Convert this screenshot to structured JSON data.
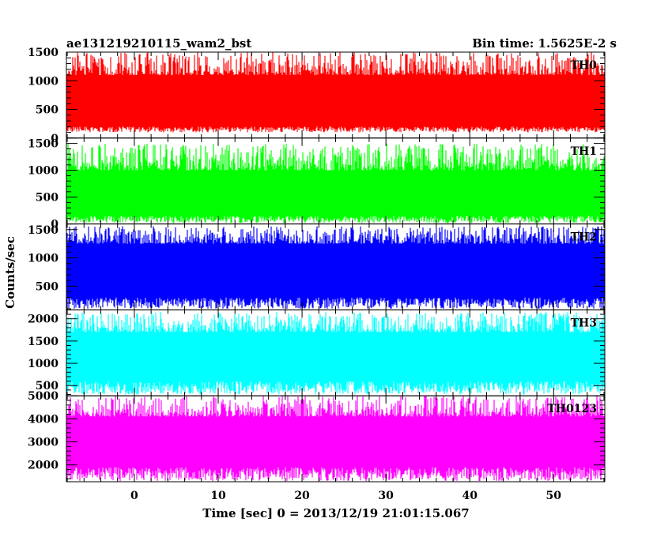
{
  "header": {
    "title": "ae131219210115_wam2_bst",
    "bin_time": "Bin time: 1.5625E-2 s"
  },
  "axes": {
    "ylabel": "Counts/sec",
    "xlabel": "Time [sec] 0 = 2013/12/19 21:01:15.067"
  },
  "chart_data": {
    "type": "line",
    "title": "ae131219210115_wam2_bst",
    "xlabel": "Time [sec] 0 = 2013/12/19 21:01:15.067",
    "ylabel": "Counts/sec",
    "xlim": [
      -8.1,
      56.1
    ],
    "x_ticks": [
      0,
      10,
      20,
      30,
      40,
      50
    ],
    "bin_time_sec": 0.015625,
    "data_x_range": [
      -8.0,
      56.0
    ],
    "panels": [
      {
        "name": "TH0",
        "color": "#ff0000",
        "ylim": [
          0,
          1500
        ],
        "y_ticks": [
          0,
          500,
          1000,
          1500
        ],
        "y_min": 100,
        "y_max": 1500,
        "y_typical_low": 200,
        "y_typical_high": 1100
      },
      {
        "name": "TH1",
        "color": "#00ff00",
        "ylim": [
          0,
          1600
        ],
        "y_ticks": [
          0,
          500,
          1000,
          1500
        ],
        "y_min": 20,
        "y_max": 1500,
        "y_typical_low": 150,
        "y_typical_high": 1000
      },
      {
        "name": "TH2",
        "color": "#0000ff",
        "ylim": [
          80,
          1600
        ],
        "y_ticks": [
          500,
          1000,
          1500
        ],
        "y_min": 100,
        "y_max": 1560,
        "y_typical_low": 300,
        "y_typical_high": 1250
      },
      {
        "name": "TH3",
        "color": "#00ffff",
        "ylim": [
          270,
          2200
        ],
        "y_ticks": [
          500,
          1000,
          1500,
          2000
        ],
        "y_min": 300,
        "y_max": 2150,
        "y_typical_low": 600,
        "y_typical_high": 1700
      },
      {
        "name": "TH0123",
        "color": "#ff00ff",
        "ylim": [
          1270,
          5000
        ],
        "y_ticks": [
          2000,
          3000,
          4000,
          5000
        ],
        "y_min": 1300,
        "y_max": 5000,
        "y_typical_low": 1900,
        "y_typical_high": 4100
      }
    ]
  }
}
